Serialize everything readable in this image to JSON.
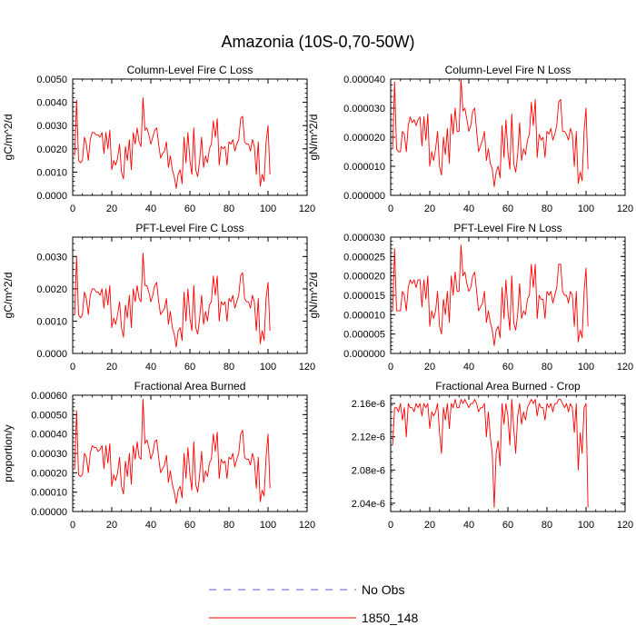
{
  "title": "Amazonia (10S-0,70-50W)",
  "legend": [
    {
      "label": "No Obs",
      "color": "#5a5ad2",
      "dash": "dashed"
    },
    {
      "label": "1850_148",
      "color": "#ff0000",
      "dash": "solid"
    }
  ],
  "chart_data": [
    {
      "type": "line",
      "title": "Column-Level Fire C Loss",
      "ylabel": "gC/m^2/d",
      "xlim": [
        0,
        120
      ],
      "ylim": [
        0,
        0.005
      ],
      "xticks": [
        "0",
        "20",
        "40",
        "60",
        "80",
        "100",
        "120"
      ],
      "yticks": [
        "0.0000",
        "0.0010",
        "0.0020",
        "0.0030",
        "0.0040",
        "0.0050"
      ],
      "series": [
        {
          "name": "1850_148",
          "color": "#ff0000",
          "x_start": 1,
          "values": [
            0.0017,
            0.0041,
            0.0015,
            0.0014,
            0.0015,
            0.0025,
            0.0022,
            0.0015,
            0.0024,
            0.0027,
            0.0027,
            0.0026,
            0.0026,
            0.0025,
            0.0027,
            0.0018,
            0.0027,
            0.002,
            0.0028,
            0.0011,
            0.0015,
            0.0013,
            0.0016,
            0.0022,
            0.001,
            0.0007,
            0.0021,
            0.0015,
            0.0024,
            0.0011,
            0.0027,
            0.0022,
            0.0029,
            0.0023,
            0.0021,
            0.0042,
            0.0028,
            0.0029,
            0.0026,
            0.0022,
            0.0025,
            0.0028,
            0.0029,
            0.0022,
            0.0016,
            0.0018,
            0.0019,
            0.0023,
            0.0012,
            0.0017,
            0.0011,
            0.0008,
            0.0003,
            0.0009,
            0.0011,
            0.0005,
            0.0025,
            0.0014,
            0.0027,
            0.0015,
            0.0009,
            0.0029,
            0.0011,
            0.0008,
            0.0015,
            0.0025,
            0.0012,
            0.0017,
            0.0014,
            0.002,
            0.0022,
            0.0032,
            0.0025,
            0.0033,
            0.0013,
            0.0021,
            0.002,
            0.0021,
            0.0013,
            0.0023,
            0.0022,
            0.0024,
            0.0019,
            0.0022,
            0.0024,
            0.0033,
            0.0034,
            0.0023,
            0.0022,
            0.0022,
            0.0019,
            0.0024,
            0.0021,
            0.0009,
            0.0023,
            0.0004,
            0.0009,
            0.0006,
            0.0023,
            0.003,
            0.0009
          ]
        }
      ]
    },
    {
      "type": "line",
      "title": "Column-Level Fire N Loss",
      "ylabel": "gN/m^2/d",
      "xlim": [
        0,
        120
      ],
      "ylim": [
        0,
        4e-05
      ],
      "xticks": [
        "0",
        "20",
        "40",
        "60",
        "80",
        "100",
        "120"
      ],
      "yticks": [
        "0.000000",
        "0.000010",
        "0.000020",
        "0.000030",
        "0.000040"
      ],
      "series": [
        {
          "name": "1850_148",
          "color": "#ff0000",
          "x_start": 1,
          "values": [
            1.6e-05,
            3.9e-05,
            1.6e-05,
            1.5e-05,
            1.5e-05,
            2.2e-05,
            2.1e-05,
            1.5e-05,
            2.4e-05,
            2.7e-05,
            2.5e-05,
            2.6e-05,
            2.4e-05,
            2.6e-05,
            2.7e-05,
            1.7e-05,
            2.7e-05,
            1.9e-05,
            2.8e-05,
            1e-05,
            1.5e-05,
            1.2e-05,
            1.6e-05,
            2.2e-05,
            1e-05,
            7e-06,
            2e-05,
            1.4e-05,
            2.3e-05,
            1.1e-05,
            2.8e-05,
            2.1e-05,
            3e-05,
            2.2e-05,
            2.2e-05,
            4e-05,
            2.9e-05,
            3e-05,
            2.6e-05,
            2.2e-05,
            2.4e-05,
            2.9e-05,
            3e-05,
            2.2e-05,
            1.5e-05,
            1.7e-05,
            1.9e-05,
            2.2e-05,
            1.2e-05,
            1.6e-05,
            1.1e-05,
            9e-06,
            3e-06,
            8e-06,
            1e-05,
            6e-06,
            2.4e-05,
            1.3e-05,
            2.6e-05,
            1.5e-05,
            9e-06,
            2.8e-05,
            1.1e-05,
            8e-06,
            1.4e-05,
            2.5e-05,
            1.2e-05,
            1.6e-05,
            1.4e-05,
            1.9e-05,
            2.1e-05,
            3.2e-05,
            2.4e-05,
            3.3e-05,
            1.3e-05,
            2.1e-05,
            1.9e-05,
            2e-05,
            1.3e-05,
            2.2e-05,
            2.1e-05,
            2.3e-05,
            1.9e-05,
            2.1e-05,
            2.4e-05,
            3.2e-05,
            3.3e-05,
            2.2e-05,
            2.2e-05,
            2.1e-05,
            1.9e-05,
            2.3e-05,
            2.1e-05,
            1e-05,
            2.2e-05,
            4e-06,
            8e-06,
            5e-06,
            2.2e-05,
            3e-05,
            9e-06
          ]
        }
      ]
    },
    {
      "type": "line",
      "title": "PFT-Level Fire C Loss",
      "ylabel": "gC/m^2/d",
      "xlim": [
        0,
        120
      ],
      "ylim": [
        0,
        0.0036
      ],
      "xticks": [
        "0",
        "20",
        "40",
        "60",
        "80",
        "100",
        "120"
      ],
      "yticks": [
        "0.0000",
        "0.0010",
        "0.0020",
        "0.0030"
      ],
      "series": [
        {
          "name": "1850_148",
          "color": "#ff0000",
          "x_start": 1,
          "values": [
            0.0012,
            0.003,
            0.0012,
            0.0011,
            0.0012,
            0.0019,
            0.0017,
            0.0012,
            0.0018,
            0.002,
            0.002,
            0.0019,
            0.0019,
            0.0018,
            0.002,
            0.0014,
            0.002,
            0.0015,
            0.0021,
            0.0008,
            0.0011,
            0.0009,
            0.0012,
            0.0016,
            0.0008,
            0.0005,
            0.0015,
            0.0011,
            0.0018,
            0.0008,
            0.002,
            0.0016,
            0.0021,
            0.0017,
            0.0016,
            0.0031,
            0.0021,
            0.0021,
            0.0019,
            0.0016,
            0.0018,
            0.0021,
            0.0022,
            0.0016,
            0.0012,
            0.0013,
            0.0014,
            0.0017,
            0.0009,
            0.0013,
            0.0008,
            0.0006,
            0.0002,
            0.0007,
            0.0008,
            0.0004,
            0.0019,
            0.001,
            0.002,
            0.0011,
            0.0007,
            0.0021,
            0.0008,
            0.0006,
            0.0011,
            0.0018,
            0.0009,
            0.0013,
            0.001,
            0.0015,
            0.0016,
            0.0024,
            0.0018,
            0.0024,
            0.001,
            0.0016,
            0.0015,
            0.0016,
            0.001,
            0.0017,
            0.0016,
            0.0018,
            0.0014,
            0.0016,
            0.0018,
            0.0024,
            0.0025,
            0.0017,
            0.0016,
            0.0016,
            0.0014,
            0.0018,
            0.0016,
            0.0007,
            0.0017,
            0.0003,
            0.0007,
            0.0004,
            0.0017,
            0.0022,
            0.0007
          ]
        }
      ]
    },
    {
      "type": "line",
      "title": "PFT-Level Fire N Loss",
      "ylabel": "gN/m^2/d",
      "xlim": [
        0,
        120
      ],
      "ylim": [
        0,
        3e-05
      ],
      "xticks": [
        "0",
        "20",
        "40",
        "60",
        "80",
        "100",
        "120"
      ],
      "yticks": [
        "0.000000",
        "0.000005",
        "0.000010",
        "0.000015",
        "0.000020",
        "0.000025",
        "0.000030"
      ],
      "series": [
        {
          "name": "1850_148",
          "color": "#ff0000",
          "x_start": 1,
          "values": [
            1.1e-05,
            2.7e-05,
            1.1e-05,
            1.1e-05,
            1.1e-05,
            1.6e-05,
            1.5e-05,
            1.1e-05,
            1.7e-05,
            1.9e-05,
            1.8e-05,
            1.9e-05,
            1.7e-05,
            1.9e-05,
            1.9e-05,
            1.2e-05,
            1.9e-05,
            1.4e-05,
            2e-05,
            7e-06,
            1.1e-05,
            9e-06,
            1.1e-05,
            1.6e-05,
            7e-06,
            5e-06,
            1.4e-05,
            1e-05,
            1.6e-05,
            8e-06,
            2e-05,
            1.5e-05,
            2.1e-05,
            1.6e-05,
            1.6e-05,
            2.8e-05,
            2e-05,
            2.1e-05,
            1.8e-05,
            1.6e-05,
            1.7e-05,
            2e-05,
            2.1e-05,
            1.6e-05,
            1.1e-05,
            1.2e-05,
            1.3e-05,
            1.6e-05,
            8e-06,
            1.1e-05,
            8e-06,
            6e-06,
            2e-06,
            6e-06,
            7e-06,
            4e-06,
            1.7e-05,
            9e-06,
            1.9e-05,
            1.1e-05,
            6e-06,
            2e-05,
            8e-06,
            6e-06,
            1e-05,
            1.8e-05,
            9e-06,
            1.1e-05,
            1e-05,
            1.4e-05,
            1.5e-05,
            2.3e-05,
            1.7e-05,
            2.3e-05,
            9e-06,
            1.5e-05,
            1.4e-05,
            1.4e-05,
            9e-06,
            1.6e-05,
            1.5e-05,
            1.6e-05,
            1.3e-05,
            1.5e-05,
            1.7e-05,
            2.3e-05,
            2.3e-05,
            1.6e-05,
            1.5e-05,
            1.5e-05,
            1.3e-05,
            1.6e-05,
            1.5e-05,
            7e-06,
            1.6e-05,
            3e-06,
            6e-06,
            4e-06,
            1.6e-05,
            2.2e-05,
            7e-06
          ]
        }
      ]
    },
    {
      "type": "line",
      "title": "Fractional Area Burned",
      "ylabel": "proportion/y",
      "xlim": [
        0,
        120
      ],
      "ylim": [
        0,
        0.0006
      ],
      "xticks": [
        "0",
        "20",
        "40",
        "60",
        "80",
        "100",
        "120"
      ],
      "yticks": [
        "0.00000",
        "0.00010",
        "0.00020",
        "0.00030",
        "0.00040",
        "0.00050",
        "0.00060"
      ],
      "series": [
        {
          "name": "1850_148",
          "color": "#ff0000",
          "x_start": 1,
          "values": [
            0.00022,
            0.00052,
            0.00019,
            0.00018,
            0.00019,
            0.0003,
            0.00028,
            0.0002,
            0.0003,
            0.00034,
            0.00033,
            0.00033,
            0.00031,
            0.00032,
            0.00034,
            0.00022,
            0.00034,
            0.00025,
            0.00035,
            0.00013,
            0.00019,
            0.00016,
            0.0002,
            0.00028,
            0.00013,
            9e-05,
            0.00026,
            0.00018,
            0.0003,
            0.00014,
            0.00034,
            0.00027,
            0.00036,
            0.00028,
            0.00027,
            0.00058,
            0.00035,
            0.00037,
            0.00033,
            0.00027,
            0.0003,
            0.00036,
            0.00037,
            0.00028,
            0.0002,
            0.00022,
            0.00024,
            0.00029,
            0.00015,
            0.00021,
            0.00014,
            0.0001,
            4e-05,
            0.00011,
            0.00013,
            7e-05,
            0.0003,
            0.00017,
            0.00033,
            0.00019,
            0.00011,
            0.00036,
            0.00014,
            0.0001,
            0.00019,
            0.00031,
            0.00015,
            0.00021,
            0.00018,
            0.00025,
            0.00027,
            0.0004,
            0.00031,
            0.00041,
            0.00017,
            0.00027,
            0.00025,
            0.00026,
            0.00017,
            0.00028,
            0.00027,
            0.0003,
            0.00023,
            0.00027,
            0.0003,
            0.0004,
            0.00042,
            0.00028,
            0.00027,
            0.00027,
            0.00024,
            0.0003,
            0.00026,
            0.00012,
            0.00028,
            5e-05,
            0.00011,
            8e-05,
            0.00028,
            0.0004,
            0.00012
          ]
        }
      ]
    },
    {
      "type": "line",
      "title": "Fractional Area Burned - Crop",
      "ylabel": "",
      "xlim": [
        0,
        120
      ],
      "ylim": [
        2.03e-06,
        2.17e-06
      ],
      "xticks": [
        "0",
        "20",
        "40",
        "60",
        "80",
        "100",
        "120"
      ],
      "ytick_values": [
        2.04e-06,
        2.08e-06,
        2.12e-06,
        2.16e-06
      ],
      "yticks": [
        "2.04e-6",
        "2.08e-6",
        "2.12e-6",
        "2.16e-6"
      ],
      "series": [
        {
          "name": "1850_148",
          "color": "#ff0000",
          "x_start": 1,
          "values": [
            2.11e-06,
            2.155e-06,
            2.155e-06,
            2.15e-06,
            2.16e-06,
            2.14e-06,
            2.155e-06,
            2.12e-06,
            2.16e-06,
            2.155e-06,
            2.155e-06,
            2.15e-06,
            2.16e-06,
            2.155e-06,
            2.16e-06,
            2.145e-06,
            2.16e-06,
            2.155e-06,
            2.16e-06,
            2.13e-06,
            2.15e-06,
            2.145e-06,
            2.15e-06,
            2.16e-06,
            2.125e-06,
            2.1e-06,
            2.155e-06,
            2.14e-06,
            2.16e-06,
            2.13e-06,
            2.16e-06,
            2.155e-06,
            2.165e-06,
            2.155e-06,
            2.155e-06,
            2.165e-06,
            2.16e-06,
            2.165e-06,
            2.16e-06,
            2.155e-06,
            2.16e-06,
            2.16e-06,
            2.165e-06,
            2.16e-06,
            2.15e-06,
            2.155e-06,
            2.155e-06,
            2.16e-06,
            2.12e-06,
            2.15e-06,
            2.12e-06,
            2.1e-06,
            2.035e-06,
            2.1e-06,
            2.115e-06,
            2.085e-06,
            2.16e-06,
            2.135e-06,
            2.16e-06,
            2.145e-06,
            2.11e-06,
            2.165e-06,
            2.13e-06,
            2.1e-06,
            2.145e-06,
            2.16e-06,
            2.135e-06,
            2.15e-06,
            2.14e-06,
            2.155e-06,
            2.16e-06,
            2.165e-06,
            2.16e-06,
            2.165e-06,
            2.145e-06,
            2.16e-06,
            2.155e-06,
            2.155e-06,
            2.14e-06,
            2.16e-06,
            2.155e-06,
            2.16e-06,
            2.15e-06,
            2.16e-06,
            2.16e-06,
            2.165e-06,
            2.165e-06,
            2.16e-06,
            2.155e-06,
            2.16e-06,
            2.15e-06,
            2.16e-06,
            2.155e-06,
            2.125e-06,
            2.16e-06,
            2.08e-06,
            2.125e-06,
            2.1e-06,
            2.155e-06,
            2.16e-06,
            2.035e-06
          ]
        }
      ]
    }
  ]
}
